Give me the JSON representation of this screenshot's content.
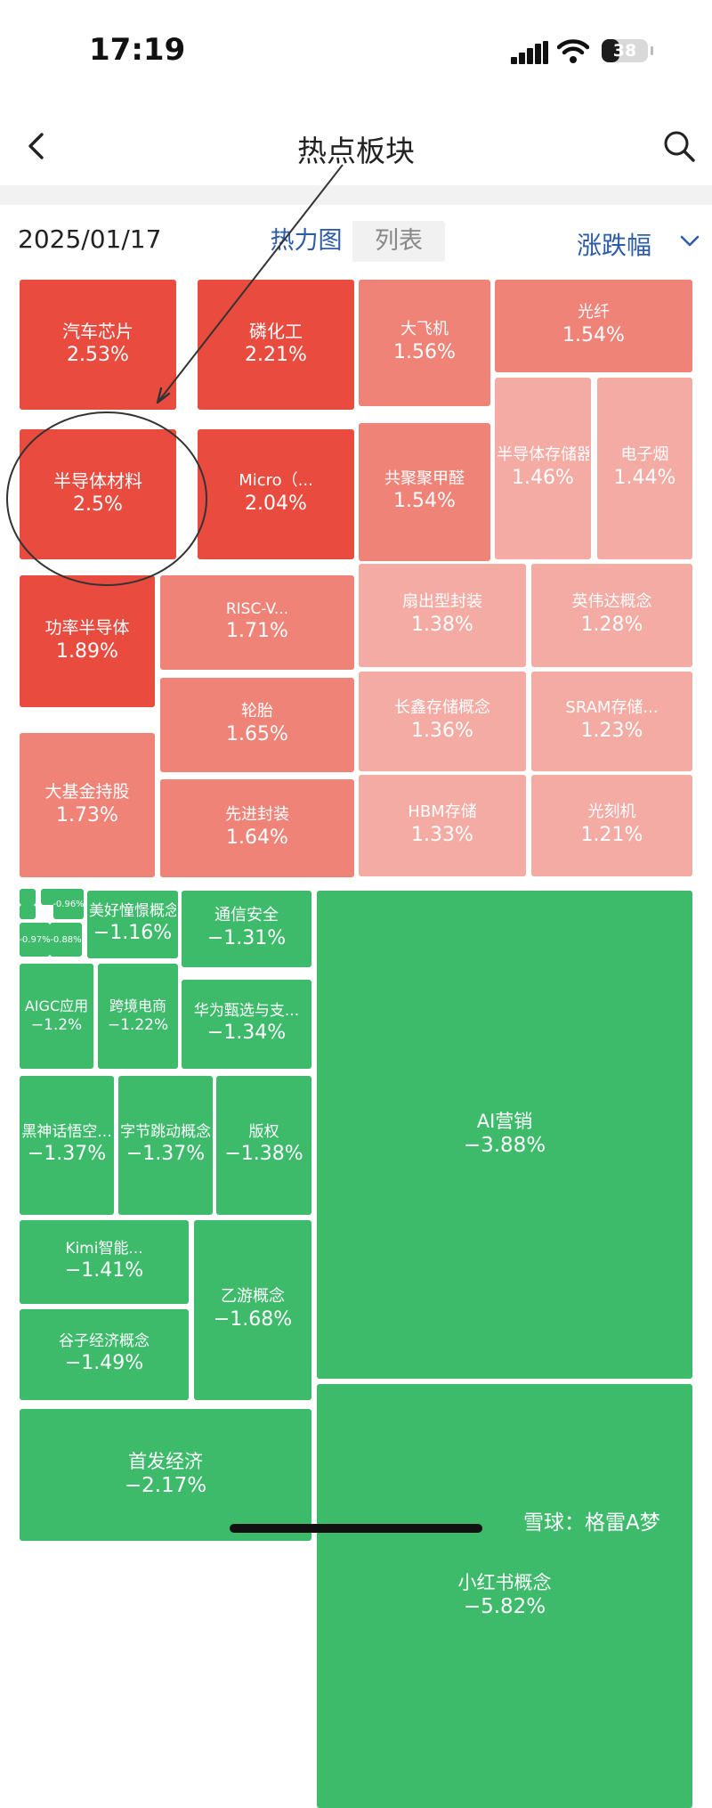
{
  "status_bar": {
    "time": "17:19",
    "battery": "38",
    "battery_level": 0.38
  },
  "nav": {
    "title": "热点板块"
  },
  "toolbar": {
    "date": "2025/01/17",
    "tabs": [
      "热力图",
      "列表"
    ],
    "active_tab": "热力图",
    "sort_label": "涨跌幅"
  },
  "colors": {
    "up_strong": "#ea4b3f",
    "up_medium": "#f08378",
    "up_light": "#f4aba3",
    "down": "#3dbb6b",
    "link_blue": "#2e5da8"
  },
  "sectors_up": [
    {
      "name": "汽车芯片",
      "change": "2.53%"
    },
    {
      "name": "磷化工",
      "change": "2.21%"
    },
    {
      "name": "半导体材料",
      "change": "2.5%"
    },
    {
      "name": "Micro（...",
      "change": "2.04%"
    },
    {
      "name": "功率半导体",
      "change": "1.89%"
    },
    {
      "name": "大基金持股",
      "change": "1.73%"
    },
    {
      "name": "RISC-V...",
      "change": "1.71%"
    },
    {
      "name": "轮胎",
      "change": "1.65%"
    },
    {
      "name": "先进封装",
      "change": "1.64%"
    },
    {
      "name": "大飞机",
      "change": "1.56%"
    },
    {
      "name": "共聚聚甲醛",
      "change": "1.54%"
    },
    {
      "name": "光纤",
      "change": "1.54%"
    },
    {
      "name": "半导体存储器",
      "change": "1.46%"
    },
    {
      "name": "电子烟",
      "change": "1.44%"
    },
    {
      "name": "扇出型封装",
      "change": "1.38%"
    },
    {
      "name": "英伟达概念",
      "change": "1.28%"
    },
    {
      "name": "长鑫存储概念",
      "change": "1.36%"
    },
    {
      "name": "SRAM存储...",
      "change": "1.23%"
    },
    {
      "name": "HBM存储",
      "change": "1.33%"
    },
    {
      "name": "光刻机",
      "change": "1.21%"
    }
  ],
  "sectors_down": [
    {
      "name": "",
      "change": "-0.96%"
    },
    {
      "name": "",
      "change": "-0.97%"
    },
    {
      "name": "",
      "change": "-0.88%"
    },
    {
      "name": "美好憧憬概念",
      "change": "−1.16%"
    },
    {
      "name": "通信安全",
      "change": "−1.31%"
    },
    {
      "name": "AIGC应用",
      "change": "−1.2%"
    },
    {
      "name": "跨境电商",
      "change": "−1.22%"
    },
    {
      "name": "华为甄选与支...",
      "change": "−1.34%"
    },
    {
      "name": "黑神话悟空...",
      "change": "−1.37%"
    },
    {
      "name": "字节跳动概念",
      "change": "−1.37%"
    },
    {
      "name": "版权",
      "change": "−1.38%"
    },
    {
      "name": "Kimi智能...",
      "change": "−1.41%"
    },
    {
      "name": "谷子经济概念",
      "change": "−1.49%"
    },
    {
      "name": "乙游概念",
      "change": "−1.68%"
    },
    {
      "name": "首发经济",
      "change": "−2.17%"
    },
    {
      "name": "AI营销",
      "change": "−3.88%"
    },
    {
      "name": "小红书概念",
      "change": "−5.82%"
    }
  ],
  "watermark": "雪球：格雷A梦"
}
